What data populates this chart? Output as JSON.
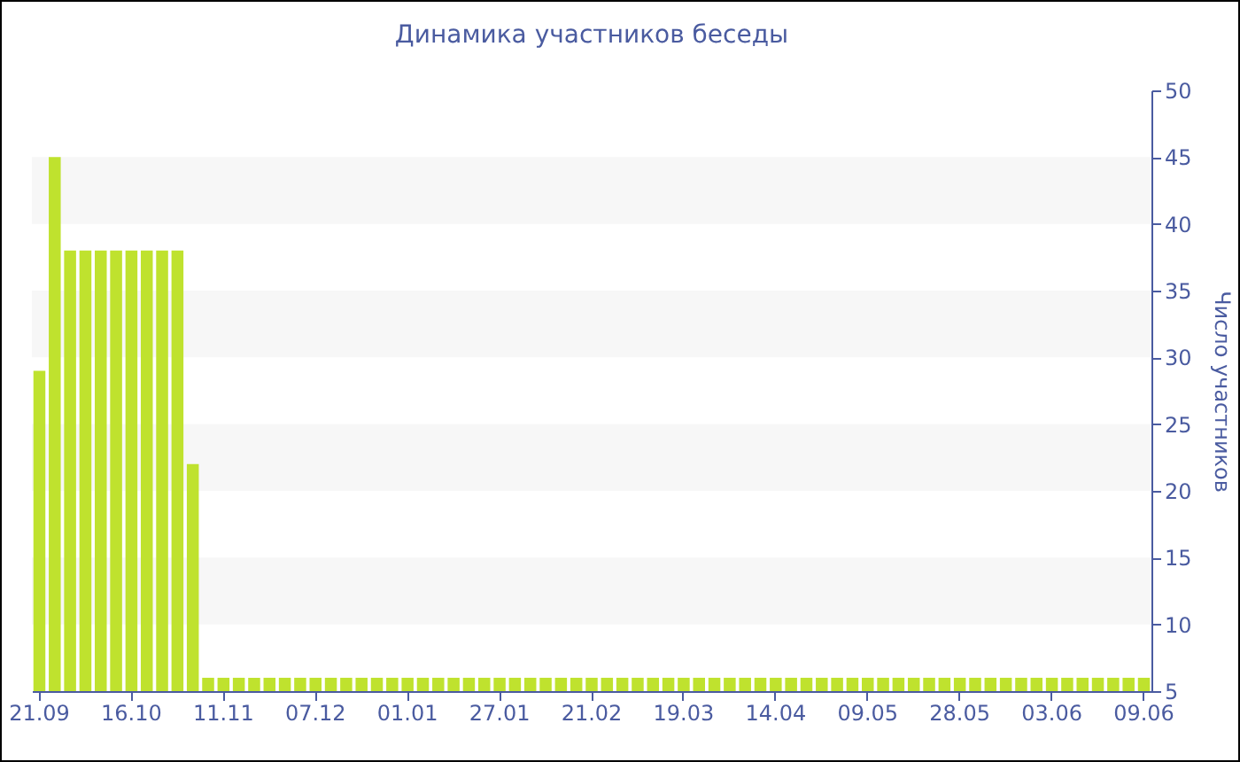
{
  "chart_data": {
    "type": "bar",
    "title": "Динамика участников беседы",
    "ylabel": "Число участников",
    "categories": [
      "21.09",
      null,
      null,
      null,
      null,
      null,
      "16.10",
      null,
      null,
      null,
      null,
      null,
      "11.11",
      null,
      null,
      null,
      null,
      null,
      "07.12",
      null,
      null,
      null,
      null,
      null,
      "01.01",
      null,
      null,
      null,
      null,
      null,
      "27.01",
      null,
      null,
      null,
      null,
      null,
      "21.02",
      null,
      null,
      null,
      null,
      null,
      "19.03",
      null,
      null,
      null,
      null,
      null,
      "14.04",
      null,
      null,
      null,
      null,
      null,
      "09.05",
      null,
      null,
      null,
      null,
      null,
      "28.05",
      null,
      null,
      null,
      null,
      null,
      "03.06",
      null,
      null,
      null,
      null,
      null,
      "09.06"
    ],
    "values": [
      29,
      45,
      38,
      38,
      38,
      38,
      38,
      38,
      38,
      38,
      22,
      6,
      6,
      6,
      6,
      6,
      6,
      6,
      6,
      6,
      6,
      6,
      6,
      6,
      6,
      6,
      6,
      6,
      6,
      6,
      6,
      6,
      6,
      6,
      6,
      6,
      6,
      6,
      6,
      6,
      6,
      6,
      6,
      6,
      6,
      6,
      6,
      6,
      6,
      6,
      6,
      6,
      6,
      6,
      6,
      6,
      6,
      6,
      6,
      6,
      6,
      6,
      6,
      6,
      6,
      6,
      6,
      6,
      6,
      6,
      6,
      6,
      6
    ],
    "color": "#bfe22e",
    "ylim": [
      5,
      50
    ],
    "yticks": [
      5,
      10,
      15,
      20,
      25,
      30,
      35,
      40,
      45,
      50
    ],
    "grid": false,
    "bands": [
      {
        "axis": "y",
        "from": 10,
        "to": 15,
        "color": "#f7f7f7"
      },
      {
        "axis": "y",
        "from": 20,
        "to": 25,
        "color": "#f7f7f7"
      },
      {
        "axis": "y",
        "from": 30,
        "to": 35,
        "color": "#f7f7f7"
      },
      {
        "axis": "y",
        "from": 40,
        "to": 45,
        "color": "#f7f7f7"
      }
    ]
  }
}
